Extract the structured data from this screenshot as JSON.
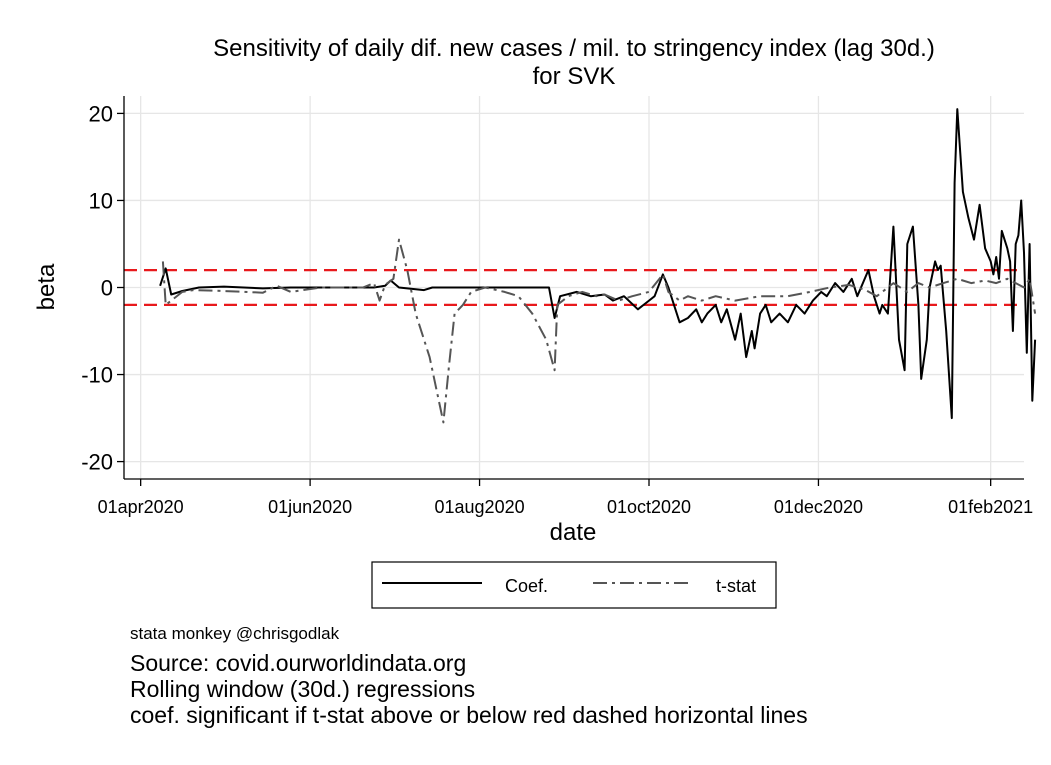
{
  "chart_data": {
    "type": "line",
    "title": "Sensitivity of daily dif. new cases / mil. to stringency index (lag 30d.)",
    "subtitle": "for SVK",
    "xlabel": "date",
    "ylabel": "beta",
    "x_ticks": [
      "01apr2020",
      "01jun2020",
      "01aug2020",
      "01oct2020",
      "01dec2020",
      "01feb2021"
    ],
    "x_range": [
      "2020-03-26",
      "2021-02-13"
    ],
    "ylim": [
      -22,
      22
    ],
    "y_ticks": [
      20,
      10,
      0,
      -10,
      -20
    ],
    "grid": true,
    "reference_lines": [
      2,
      -2
    ],
    "reference_line_color": "#e8191c",
    "legend_position": "bottom",
    "series": [
      {
        "name": "Coef.",
        "color": "#000000",
        "dash": "solid",
        "points": [
          [
            "2020-04-08",
            0.2
          ],
          [
            "2020-04-10",
            2.2
          ],
          [
            "2020-04-12",
            -0.8
          ],
          [
            "2020-04-16",
            -0.4
          ],
          [
            "2020-04-22",
            0
          ],
          [
            "2020-05-01",
            0.1
          ],
          [
            "2020-05-15",
            -0.1
          ],
          [
            "2020-05-25",
            0
          ],
          [
            "2020-06-10",
            0
          ],
          [
            "2020-06-24",
            0
          ],
          [
            "2020-06-28",
            0.2
          ],
          [
            "2020-06-30",
            0.8
          ],
          [
            "2020-07-03",
            0
          ],
          [
            "2020-07-12",
            -0.3
          ],
          [
            "2020-07-15",
            0
          ],
          [
            "2020-07-25",
            0
          ],
          [
            "2020-08-05",
            0
          ],
          [
            "2020-08-20",
            0
          ],
          [
            "2020-08-26",
            0
          ],
          [
            "2020-08-28",
            -3.5
          ],
          [
            "2020-08-30",
            -1
          ],
          [
            "2020-09-05",
            -0.5
          ],
          [
            "2020-09-10",
            -1
          ],
          [
            "2020-09-15",
            -0.8
          ],
          [
            "2020-09-18",
            -1.5
          ],
          [
            "2020-09-22",
            -1
          ],
          [
            "2020-09-27",
            -2.5
          ],
          [
            "2020-10-01",
            -1.5
          ],
          [
            "2020-10-03",
            -1
          ],
          [
            "2020-10-06",
            1.5
          ],
          [
            "2020-10-08",
            0
          ],
          [
            "2020-10-10",
            -2
          ],
          [
            "2020-10-12",
            -4
          ],
          [
            "2020-10-15",
            -3.5
          ],
          [
            "2020-10-18",
            -2.5
          ],
          [
            "2020-10-20",
            -4
          ],
          [
            "2020-10-22",
            -3
          ],
          [
            "2020-10-25",
            -2
          ],
          [
            "2020-10-27",
            -4
          ],
          [
            "2020-10-29",
            -2.5
          ],
          [
            "2020-11-01",
            -6
          ],
          [
            "2020-11-03",
            -3
          ],
          [
            "2020-11-05",
            -8
          ],
          [
            "2020-11-07",
            -5
          ],
          [
            "2020-11-08",
            -7
          ],
          [
            "2020-11-10",
            -3
          ],
          [
            "2020-11-12",
            -2
          ],
          [
            "2020-11-14",
            -4
          ],
          [
            "2020-11-17",
            -3
          ],
          [
            "2020-11-20",
            -4
          ],
          [
            "2020-11-23",
            -2
          ],
          [
            "2020-11-26",
            -3
          ],
          [
            "2020-11-29",
            -1.5
          ],
          [
            "2020-12-02",
            -0.5
          ],
          [
            "2020-12-04",
            -1
          ],
          [
            "2020-12-07",
            0.5
          ],
          [
            "2020-12-10",
            -0.5
          ],
          [
            "2020-12-13",
            1
          ],
          [
            "2020-12-15",
            -1
          ],
          [
            "2020-12-19",
            2
          ],
          [
            "2020-12-21",
            -1
          ],
          [
            "2020-12-23",
            -3
          ],
          [
            "2020-12-24",
            -2
          ],
          [
            "2020-12-26",
            -3
          ],
          [
            "2020-12-28",
            7
          ],
          [
            "2020-12-30",
            -6
          ],
          [
            "2021-01-01",
            -9.5
          ],
          [
            "2021-01-02",
            5
          ],
          [
            "2021-01-04",
            7
          ],
          [
            "2021-01-06",
            -2
          ],
          [
            "2021-01-07",
            -10.5
          ],
          [
            "2021-01-09",
            -6
          ],
          [
            "2021-01-10",
            0
          ],
          [
            "2021-01-12",
            3
          ],
          [
            "2021-01-13",
            2
          ],
          [
            "2021-01-14",
            2.5
          ],
          [
            "2021-01-16",
            -5
          ],
          [
            "2021-01-18",
            -15
          ],
          [
            "2021-01-19",
            12
          ],
          [
            "2021-01-20",
            20.5
          ],
          [
            "2021-01-22",
            11
          ],
          [
            "2021-01-24",
            8
          ],
          [
            "2021-01-26",
            5.5
          ],
          [
            "2021-01-28",
            9.5
          ],
          [
            "2021-01-30",
            4.5
          ],
          [
            "2021-02-01",
            3
          ],
          [
            "2021-02-02",
            1.5
          ],
          [
            "2021-02-03",
            3.5
          ],
          [
            "2021-02-04",
            1
          ],
          [
            "2021-02-05",
            6.5
          ],
          [
            "2021-02-07",
            4.5
          ],
          [
            "2021-02-08",
            3
          ],
          [
            "2021-02-09",
            -5
          ],
          [
            "2021-02-10",
            5
          ],
          [
            "2021-02-11",
            6
          ],
          [
            "2021-02-12",
            10
          ],
          [
            "2021-02-13",
            4
          ],
          [
            "2021-02-14",
            -7.5
          ],
          [
            "2021-02-15",
            5
          ],
          [
            "2021-02-16",
            -13
          ],
          [
            "2021-02-17",
            -6
          ]
        ]
      },
      {
        "name": "t-stat",
        "color": "#555555",
        "dash": "dashdot",
        "points": [
          [
            "2020-04-09",
            3
          ],
          [
            "2020-04-10",
            -2
          ],
          [
            "2020-04-12",
            -1.5
          ],
          [
            "2020-04-16",
            -0.5
          ],
          [
            "2020-04-20",
            -0.3
          ],
          [
            "2020-05-01",
            -0.4
          ],
          [
            "2020-05-15",
            -0.6
          ],
          [
            "2020-05-20",
            0.2
          ],
          [
            "2020-05-25",
            -0.5
          ],
          [
            "2020-06-05",
            0
          ],
          [
            "2020-06-20",
            0
          ],
          [
            "2020-06-24",
            0.5
          ],
          [
            "2020-06-26",
            -1.5
          ],
          [
            "2020-06-28",
            0.3
          ],
          [
            "2020-07-01",
            1
          ],
          [
            "2020-07-03",
            5.5
          ],
          [
            "2020-07-06",
            2
          ],
          [
            "2020-07-09",
            -3
          ],
          [
            "2020-07-14",
            -8
          ],
          [
            "2020-07-19",
            -15.5
          ],
          [
            "2020-07-21",
            -9
          ],
          [
            "2020-07-23",
            -3
          ],
          [
            "2020-07-26",
            -2
          ],
          [
            "2020-07-29",
            -0.5
          ],
          [
            "2020-08-03",
            0
          ],
          [
            "2020-08-10",
            -0.5
          ],
          [
            "2020-08-15",
            -1
          ],
          [
            "2020-08-20",
            -3
          ],
          [
            "2020-08-25",
            -6
          ],
          [
            "2020-08-28",
            -9.5
          ],
          [
            "2020-08-29",
            -2
          ],
          [
            "2020-09-02",
            -1
          ],
          [
            "2020-09-07",
            -0.5
          ],
          [
            "2020-09-12",
            -1
          ],
          [
            "2020-09-15",
            -0.8
          ],
          [
            "2020-09-20",
            -1.5
          ],
          [
            "2020-09-25",
            -1
          ],
          [
            "2020-10-01",
            -0.5
          ],
          [
            "2020-10-06",
            1.5
          ],
          [
            "2020-10-08",
            -0.5
          ],
          [
            "2020-10-12",
            -1.5
          ],
          [
            "2020-10-15",
            -1
          ],
          [
            "2020-10-20",
            -1.5
          ],
          [
            "2020-10-25",
            -1
          ],
          [
            "2020-11-01",
            -1.5
          ],
          [
            "2020-11-10",
            -1
          ],
          [
            "2020-11-20",
            -1
          ],
          [
            "2020-11-28",
            -0.5
          ],
          [
            "2020-12-05",
            0
          ],
          [
            "2020-12-12",
            0.3
          ],
          [
            "2020-12-18",
            -0.3
          ],
          [
            "2020-12-22",
            -1
          ],
          [
            "2020-12-28",
            0.5
          ],
          [
            "2021-01-02",
            -0.5
          ],
          [
            "2021-01-06",
            0.5
          ],
          [
            "2021-01-10",
            0
          ],
          [
            "2021-01-15",
            0.5
          ],
          [
            "2021-01-20",
            1
          ],
          [
            "2021-01-25",
            0.5
          ],
          [
            "2021-01-30",
            0.8
          ],
          [
            "2021-02-03",
            0.5
          ],
          [
            "2021-02-07",
            1
          ],
          [
            "2021-02-10",
            0.5
          ],
          [
            "2021-02-13",
            0
          ],
          [
            "2021-02-15",
            1
          ],
          [
            "2021-02-17",
            -3
          ]
        ]
      }
    ]
  },
  "legend": {
    "coef_label": "Coef.",
    "tstat_label": "t-stat"
  },
  "notes": {
    "credit": "stata monkey @chrisgodlak",
    "source": "Source: covid.ourworldindata.org",
    "method": "Rolling window (30d.) regressions",
    "significance": "coef. significant if t-stat above or below red dashed horizontal lines"
  }
}
